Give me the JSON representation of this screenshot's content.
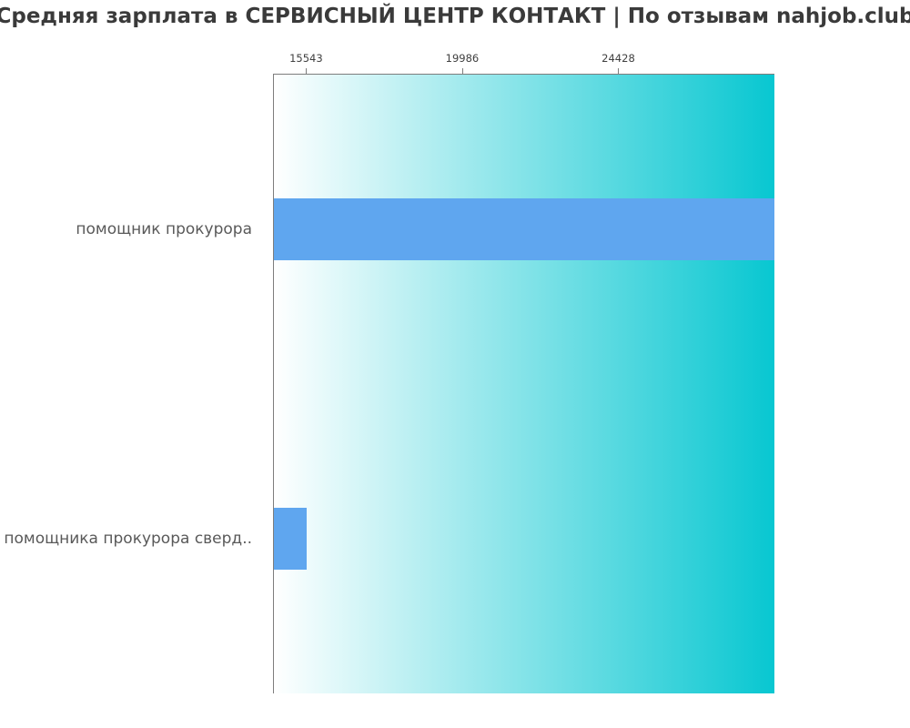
{
  "chart_data": {
    "type": "bar",
    "orientation": "horizontal",
    "title": "Средняя зарплата в СЕРВИСНЫЙ ЦЕНТР КОНТАКТ | По отзывам nahjob.club",
    "categories": [
      "помощник прокурора",
      "помощника прокурора сверд.."
    ],
    "values": [
      28871,
      15543
    ],
    "x_ticks": [
      15543,
      19986,
      24428
    ],
    "xlim": [
      14600,
      28871
    ],
    "xlabel": "",
    "ylabel": "",
    "grid": false,
    "legend_position": "none",
    "axis_position": "top",
    "colors": {
      "bar": "#5fa6ef",
      "plot_bg_gradient_start": "#ffffff",
      "plot_bg_gradient_end": "#08c7d1",
      "axis_line": "#7d7d7d",
      "tick_label": "#404040",
      "category_label": "#595959",
      "title": "#3a3a3a"
    }
  }
}
